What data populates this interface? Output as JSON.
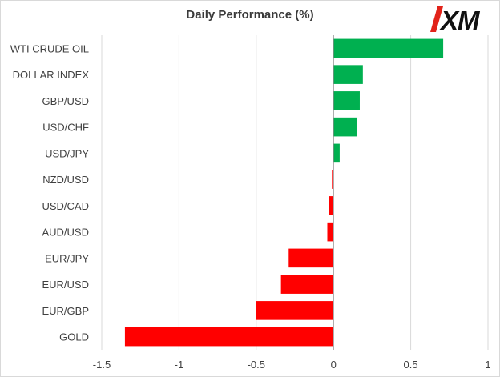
{
  "chart_data": {
    "type": "bar",
    "orientation": "horizontal",
    "title": "Daily Performance (%)",
    "categories": [
      "WTI CRUDE OIL",
      "DOLLAR INDEX",
      "GBP/USD",
      "USD/CHF",
      "USD/JPY",
      "NZD/USD",
      "USD/CAD",
      "AUD/USD",
      "EUR/JPY",
      "EUR/USD",
      "EUR/GBP",
      "GOLD"
    ],
    "values": [
      0.71,
      0.19,
      0.17,
      0.15,
      0.04,
      -0.01,
      -0.03,
      -0.04,
      -0.29,
      -0.34,
      -0.5,
      -1.35
    ],
    "xlim": [
      -1.5,
      1
    ],
    "xticks": [
      -1.5,
      -1,
      -0.5,
      0,
      0.5,
      1
    ],
    "tick_labels": [
      "-1.5",
      "-1",
      "-0.5",
      "0",
      "0.5",
      "1"
    ],
    "grid": true,
    "legend": "none",
    "colors": {
      "positive": "#00b050",
      "negative": "#ff0000",
      "gridline": "#d9d9d9",
      "zero_axis": "#8c8c8c",
      "text": "#404040"
    }
  },
  "logo": {
    "text": "XM",
    "colors": {
      "red": "#e2231a",
      "black": "#111111"
    }
  }
}
